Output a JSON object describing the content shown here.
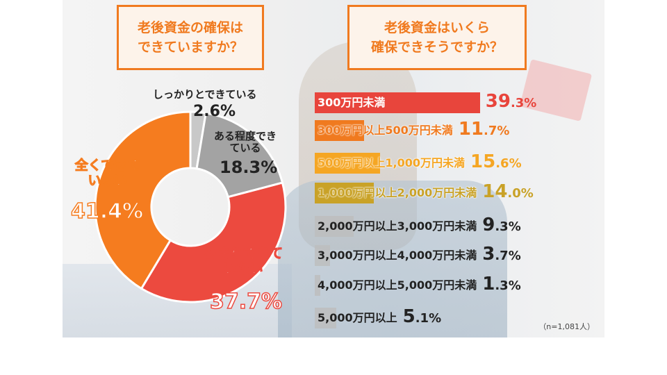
{
  "titles": {
    "left": [
      "老後資金の確保は",
      "できていますか？"
    ],
    "right": [
      "老後資金はいくら",
      "確保できそうですか？"
    ]
  },
  "note": "（n=1,081人）",
  "chart_data": [
    {
      "type": "pie",
      "title": "老後資金の確保はできていますか？",
      "donut": true,
      "slices": [
        {
          "label": "しっかりとできている",
          "value": 2.6,
          "display": "2.6%",
          "color": "#c8c8c8"
        },
        {
          "label": "ある程度できている",
          "value": 18.3,
          "display": "18.3%",
          "color": "#a3a3a3"
        },
        {
          "label": "あまりできていない",
          "value": 37.7,
          "display": "37.7%",
          "color": "#ec4a3f"
        },
        {
          "label": "全くできていない",
          "value": 41.4,
          "display": "41.4%",
          "color": "#f57c1f"
        }
      ]
    },
    {
      "type": "bar",
      "orientation": "horizontal",
      "title": "老後資金はいくら確保できそうですか？",
      "categories": [
        "300万円未満",
        "300万円以上500万円未満",
        "500万円以上1,000万円未満",
        "1,000万円以上2,000万円未満",
        "2,000万円以上3,000万円未満",
        "3,000万円以上4,000万円未満",
        "4,000万円以上5,000万円未満",
        "5,000万円以上"
      ],
      "values": [
        39.3,
        11.7,
        15.6,
        14.0,
        9.3,
        3.7,
        1.3,
        5.1
      ],
      "display": [
        "39.3%",
        "11.7%",
        "15.6%",
        "14.0%",
        "9.3%",
        "3.7%",
        "1.3%",
        "5.1%"
      ],
      "colors": [
        "#e8453c",
        "#f07a1f",
        "#f5a623",
        "#c9a227",
        "#bdbdbd",
        "#bdbdbd",
        "#bdbdbd",
        "#bdbdbd"
      ],
      "unit": "%"
    }
  ]
}
